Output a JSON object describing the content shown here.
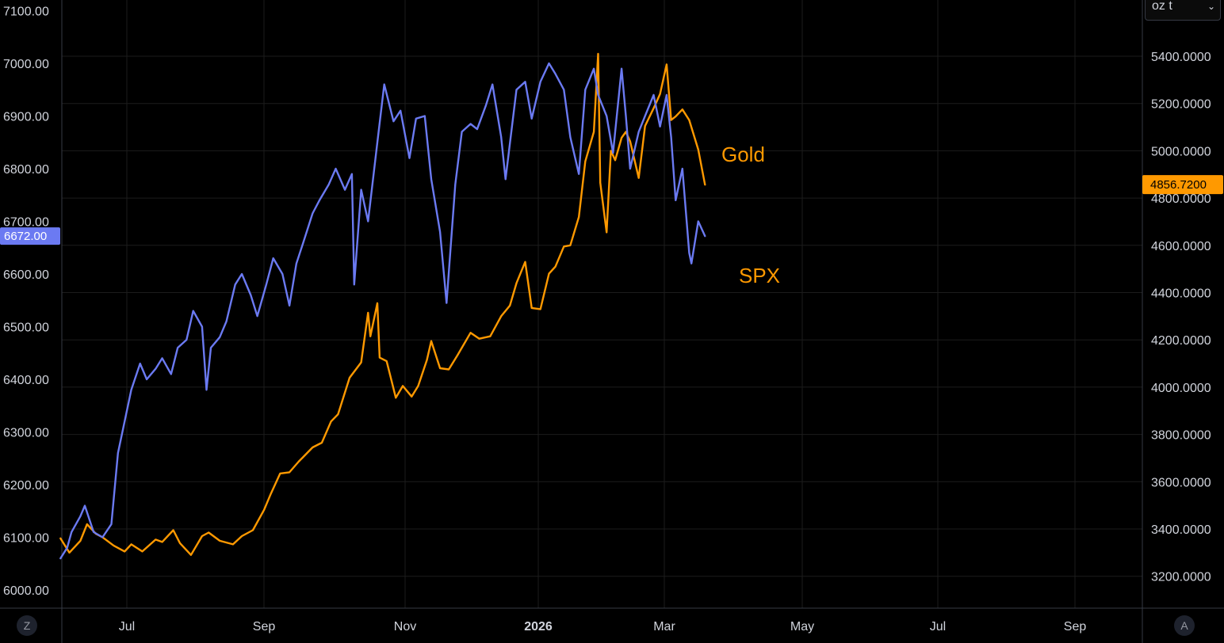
{
  "toolbar": {
    "unit_select": "oz t",
    "left_corner_button": "Z",
    "right_corner_button": "A"
  },
  "colors": {
    "spx": "#6b7af2",
    "gold": "#ff9900",
    "background": "#000000",
    "grid": "#1c1c1c",
    "axis_text": "#d1d4dc"
  },
  "chart_data": {
    "type": "line",
    "x_axis": {
      "ticks": [
        "Jul",
        "Sep",
        "Nov",
        "2026",
        "Mar",
        "May",
        "Jul",
        "Sep"
      ],
      "bold_ticks": [
        "2026"
      ]
    },
    "left_axis": {
      "ticks": [
        "7100.00",
        "7000.00",
        "6900.00",
        "6800.00",
        "6700.00",
        "6600.00",
        "6500.00",
        "6400.00",
        "6300.00",
        "6200.00",
        "6100.00",
        "6000.00"
      ],
      "range": [
        5985,
        7100
      ]
    },
    "right_axis": {
      "ticks": [
        "5400.0000",
        "5200.0000",
        "5000.0000",
        "4800.0000",
        "4600.0000",
        "4400.0000",
        "4200.0000",
        "4000.0000",
        "3800.0000",
        "3600.0000",
        "3400.0000",
        "3200.0000"
      ],
      "range": [
        3150,
        5600
      ]
    },
    "series": [
      {
        "name": "Gold",
        "axis": "right",
        "last_value": "4856.7200",
        "points": [
          [
            "2025-06-01",
            3360
          ],
          [
            "2025-06-05",
            3300
          ],
          [
            "2025-06-10",
            3350
          ],
          [
            "2025-06-13",
            3420
          ],
          [
            "2025-06-17",
            3380
          ],
          [
            "2025-06-20",
            3365
          ],
          [
            "2025-06-25",
            3330
          ],
          [
            "2025-06-30",
            3305
          ],
          [
            "2025-07-03",
            3335
          ],
          [
            "2025-07-08",
            3305
          ],
          [
            "2025-07-14",
            3355
          ],
          [
            "2025-07-17",
            3345
          ],
          [
            "2025-07-22",
            3395
          ],
          [
            "2025-07-25",
            3340
          ],
          [
            "2025-07-30",
            3290
          ],
          [
            "2025-08-04",
            3370
          ],
          [
            "2025-08-07",
            3385
          ],
          [
            "2025-08-12",
            3350
          ],
          [
            "2025-08-18",
            3335
          ],
          [
            "2025-08-22",
            3370
          ],
          [
            "2025-08-27",
            3395
          ],
          [
            "2025-09-01",
            3480
          ],
          [
            "2025-09-04",
            3550
          ],
          [
            "2025-09-08",
            3635
          ],
          [
            "2025-09-12",
            3640
          ],
          [
            "2025-09-16",
            3685
          ],
          [
            "2025-09-22",
            3745
          ],
          [
            "2025-09-26",
            3765
          ],
          [
            "2025-09-30",
            3855
          ],
          [
            "2025-10-03",
            3885
          ],
          [
            "2025-10-08",
            4040
          ],
          [
            "2025-10-13",
            4105
          ],
          [
            "2025-10-16",
            4315
          ],
          [
            "2025-10-17",
            4215
          ],
          [
            "2025-10-20",
            4355
          ],
          [
            "2025-10-21",
            4125
          ],
          [
            "2025-10-24",
            4110
          ],
          [
            "2025-10-28",
            3955
          ],
          [
            "2025-10-31",
            4005
          ],
          [
            "2025-11-04",
            3960
          ],
          [
            "2025-11-07",
            4005
          ],
          [
            "2025-11-11",
            4115
          ],
          [
            "2025-11-13",
            4195
          ],
          [
            "2025-11-17",
            4080
          ],
          [
            "2025-11-21",
            4075
          ],
          [
            "2025-11-25",
            4135
          ],
          [
            "2025-12-01",
            4230
          ],
          [
            "2025-12-05",
            4205
          ],
          [
            "2025-12-10",
            4215
          ],
          [
            "2025-12-15",
            4300
          ],
          [
            "2025-12-19",
            4345
          ],
          [
            "2025-12-22",
            4440
          ],
          [
            "2025-12-26",
            4530
          ],
          [
            "2025-12-29",
            4335
          ],
          [
            "2026-01-02",
            4330
          ],
          [
            "2026-01-06",
            4480
          ],
          [
            "2026-01-09",
            4510
          ],
          [
            "2026-01-13",
            4595
          ],
          [
            "2026-01-16",
            4600
          ],
          [
            "2026-01-20",
            4720
          ],
          [
            "2026-01-23",
            4955
          ],
          [
            "2026-01-27",
            5080
          ],
          [
            "2026-01-29",
            5410
          ],
          [
            "2026-01-30",
            4865
          ],
          [
            "2026-02-02",
            4655
          ],
          [
            "2026-02-04",
            5000
          ],
          [
            "2026-02-06",
            4960
          ],
          [
            "2026-02-09",
            5055
          ],
          [
            "2026-02-11",
            5080
          ],
          [
            "2026-02-13",
            5040
          ],
          [
            "2026-02-17",
            4885
          ],
          [
            "2026-02-20",
            5105
          ],
          [
            "2026-02-24",
            5180
          ],
          [
            "2026-02-27",
            5240
          ],
          [
            "2026-03-02",
            5365
          ],
          [
            "2026-03-04",
            5130
          ],
          [
            "2026-03-06",
            5145
          ],
          [
            "2026-03-09",
            5175
          ],
          [
            "2026-03-12",
            5130
          ],
          [
            "2026-03-16",
            5005
          ],
          [
            "2026-03-19",
            4856.72
          ]
        ]
      },
      {
        "name": "SPX",
        "axis": "left",
        "last_value": "6672.00",
        "points": [
          [
            "2025-06-01",
            6060
          ],
          [
            "2025-06-04",
            6080
          ],
          [
            "2025-06-06",
            6110
          ],
          [
            "2025-06-10",
            6140
          ],
          [
            "2025-06-12",
            6160
          ],
          [
            "2025-06-16",
            6110
          ],
          [
            "2025-06-20",
            6100
          ],
          [
            "2025-06-24",
            6125
          ],
          [
            "2025-06-27",
            6260
          ],
          [
            "2025-07-01",
            6340
          ],
          [
            "2025-07-03",
            6380
          ],
          [
            "2025-07-07",
            6430
          ],
          [
            "2025-07-10",
            6400
          ],
          [
            "2025-07-14",
            6420
          ],
          [
            "2025-07-17",
            6440
          ],
          [
            "2025-07-21",
            6410
          ],
          [
            "2025-07-24",
            6460
          ],
          [
            "2025-07-28",
            6475
          ],
          [
            "2025-07-31",
            6530
          ],
          [
            "2025-08-04",
            6500
          ],
          [
            "2025-08-06",
            6380
          ],
          [
            "2025-08-08",
            6460
          ],
          [
            "2025-08-12",
            6480
          ],
          [
            "2025-08-15",
            6510
          ],
          [
            "2025-08-19",
            6580
          ],
          [
            "2025-08-22",
            6600
          ],
          [
            "2025-08-26",
            6560
          ],
          [
            "2025-08-29",
            6520
          ],
          [
            "2025-09-02",
            6580
          ],
          [
            "2025-09-05",
            6630
          ],
          [
            "2025-09-09",
            6600
          ],
          [
            "2025-09-12",
            6540
          ],
          [
            "2025-09-15",
            6620
          ],
          [
            "2025-09-18",
            6660
          ],
          [
            "2025-09-22",
            6715
          ],
          [
            "2025-09-25",
            6740
          ],
          [
            "2025-09-29",
            6770
          ],
          [
            "2025-10-02",
            6800
          ],
          [
            "2025-10-06",
            6760
          ],
          [
            "2025-10-09",
            6790
          ],
          [
            "2025-10-10",
            6580
          ],
          [
            "2025-10-13",
            6760
          ],
          [
            "2025-10-16",
            6700
          ],
          [
            "2025-10-20",
            6850
          ],
          [
            "2025-10-23",
            6960
          ],
          [
            "2025-10-27",
            6890
          ],
          [
            "2025-10-30",
            6910
          ],
          [
            "2025-11-03",
            6820
          ],
          [
            "2025-11-06",
            6895
          ],
          [
            "2025-11-10",
            6900
          ],
          [
            "2025-11-13",
            6780
          ],
          [
            "2025-11-17",
            6680
          ],
          [
            "2025-11-20",
            6545
          ],
          [
            "2025-11-24",
            6770
          ],
          [
            "2025-11-27",
            6870
          ],
          [
            "2025-12-01",
            6885
          ],
          [
            "2025-12-04",
            6875
          ],
          [
            "2025-12-08",
            6920
          ],
          [
            "2025-12-11",
            6960
          ],
          [
            "2025-12-15",
            6860
          ],
          [
            "2025-12-17",
            6780
          ],
          [
            "2025-12-22",
            6950
          ],
          [
            "2025-12-26",
            6965
          ],
          [
            "2025-12-29",
            6895
          ],
          [
            "2026-01-02",
            6965
          ],
          [
            "2026-01-06",
            7000
          ],
          [
            "2026-01-09",
            6980
          ],
          [
            "2026-01-13",
            6950
          ],
          [
            "2026-01-16",
            6860
          ],
          [
            "2026-01-20",
            6790
          ],
          [
            "2026-01-23",
            6950
          ],
          [
            "2026-01-27",
            6990
          ],
          [
            "2026-01-29",
            6940
          ],
          [
            "2026-02-02",
            6900
          ],
          [
            "2026-02-05",
            6830
          ],
          [
            "2026-02-09",
            6990
          ],
          [
            "2026-02-11",
            6900
          ],
          [
            "2026-02-13",
            6800
          ],
          [
            "2026-02-17",
            6870
          ],
          [
            "2026-02-20",
            6900
          ],
          [
            "2026-02-24",
            6940
          ],
          [
            "2026-02-27",
            6880
          ],
          [
            "2026-03-02",
            6940
          ],
          [
            "2026-03-04",
            6860
          ],
          [
            "2026-03-06",
            6740
          ],
          [
            "2026-03-09",
            6800
          ],
          [
            "2026-03-12",
            6640
          ],
          [
            "2026-03-13",
            6620
          ],
          [
            "2026-03-16",
            6700
          ],
          [
            "2026-03-19",
            6672
          ]
        ]
      }
    ]
  }
}
